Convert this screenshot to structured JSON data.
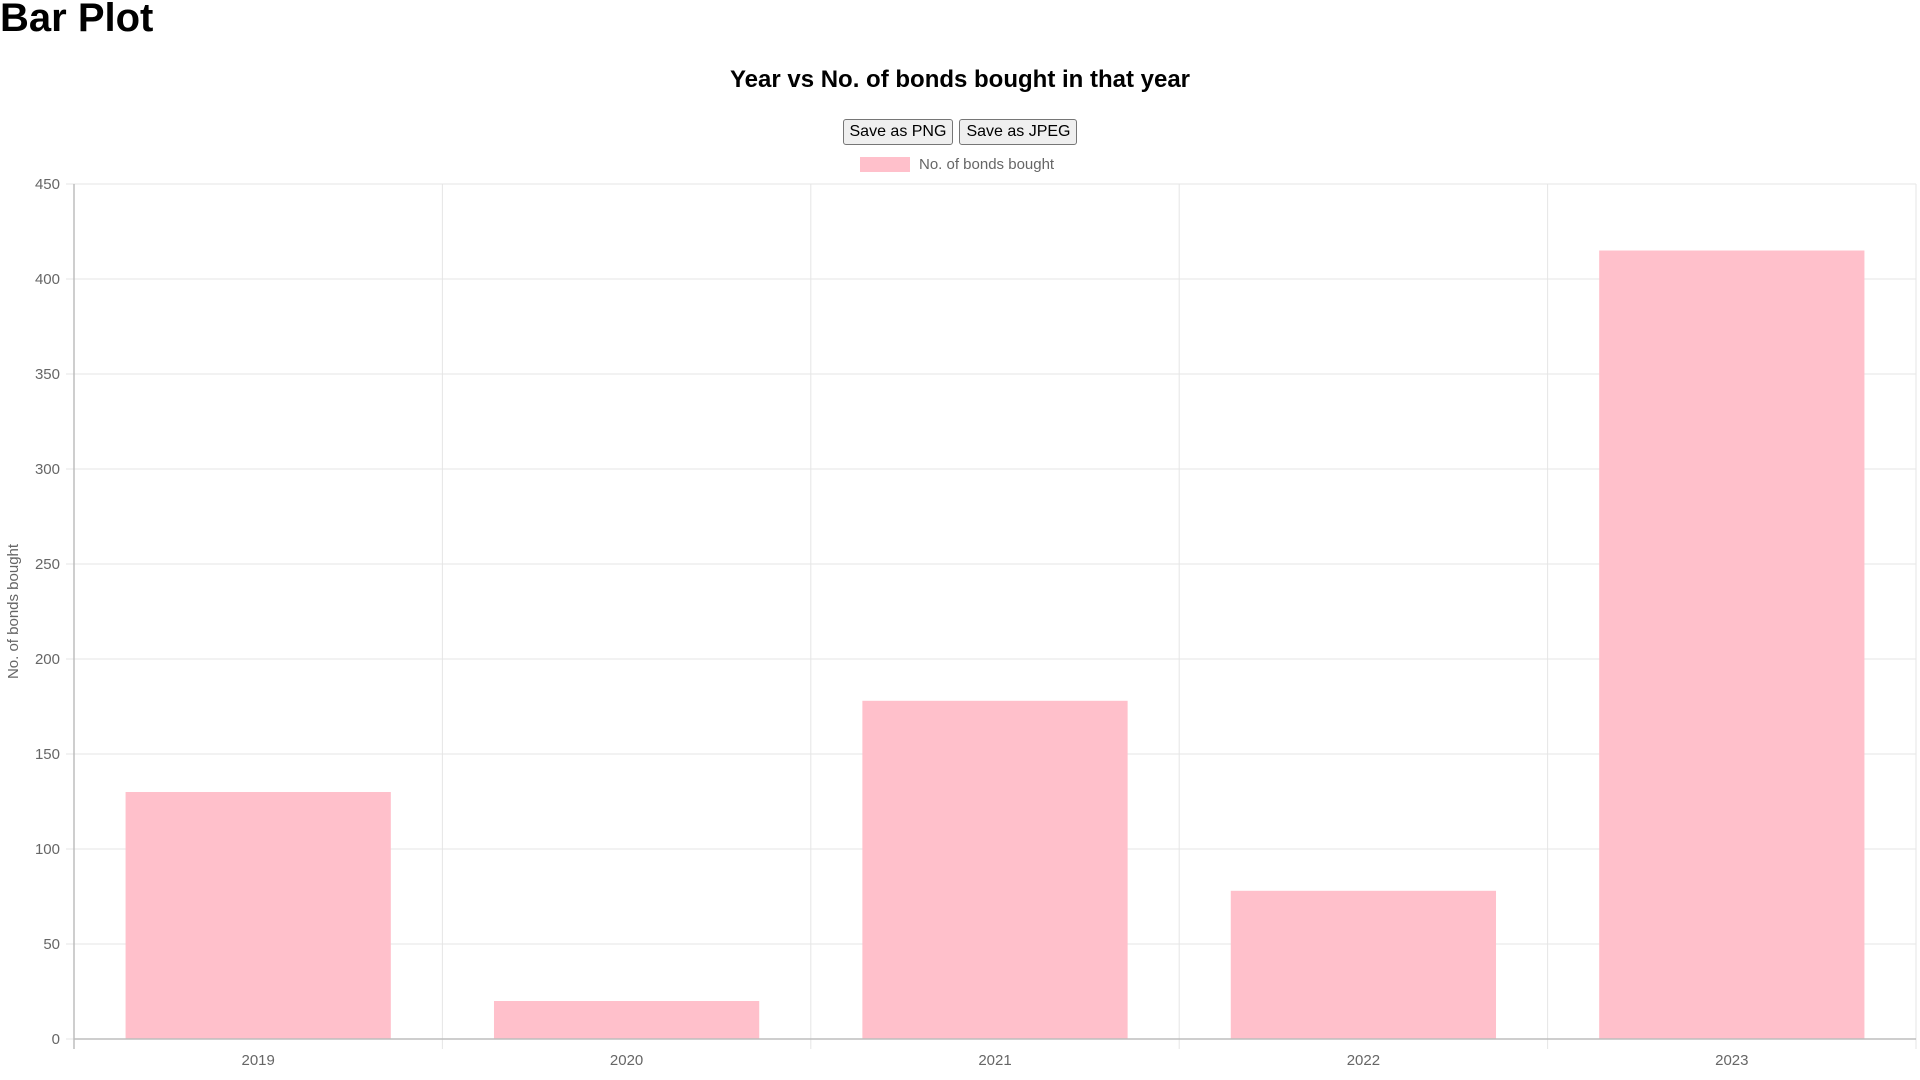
{
  "page": {
    "heading": "Bar Plot"
  },
  "buttons": {
    "save_png": "Save as PNG",
    "save_jpeg": "Save as JPEG"
  },
  "colors": {
    "bar_fill": "#ffc0cb",
    "grid": "#e5e5e5",
    "axis": "#bdbdbd",
    "tick_text": "#666666"
  },
  "chart_data": {
    "type": "bar",
    "title": "Year vs No. of bonds bought in that year",
    "xlabel": "",
    "ylabel": "No. of bonds bought",
    "categories": [
      "2019",
      "2020",
      "2021",
      "2022",
      "2023"
    ],
    "series": [
      {
        "name": "No. of bonds bought",
        "values": [
          130,
          20,
          178,
          78,
          415
        ]
      }
    ],
    "ylim": [
      0,
      450
    ],
    "yticks": [
      0,
      50,
      100,
      150,
      200,
      250,
      300,
      350,
      400,
      450
    ],
    "grid": true,
    "legend": "top-center"
  }
}
